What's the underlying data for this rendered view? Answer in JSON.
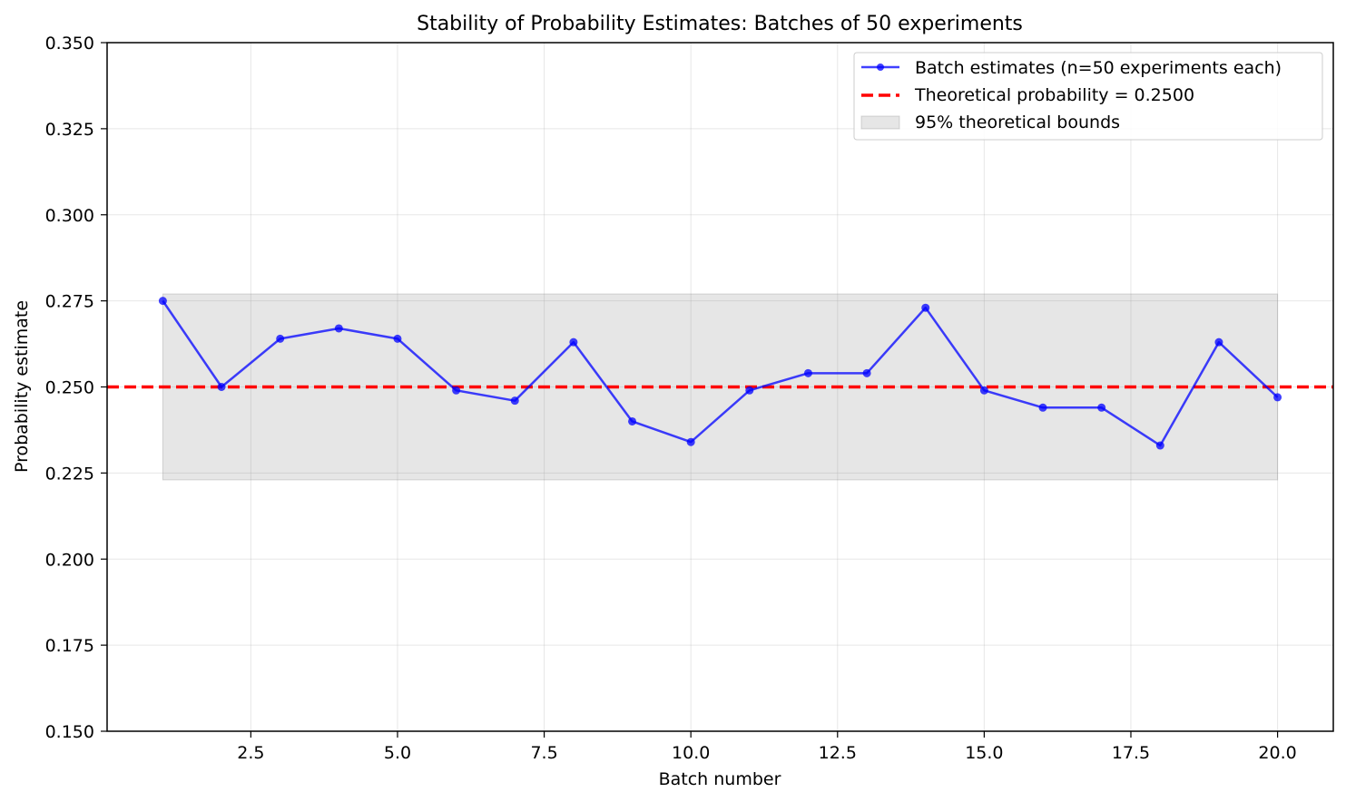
{
  "chart_data": {
    "type": "line",
    "title": "Stability of Probability Estimates: Batches of 50 experiments",
    "xlabel": "Batch number",
    "ylabel": "Probability estimate",
    "xlim": [
      0.05,
      20.95
    ],
    "ylim": [
      0.15,
      0.35
    ],
    "x_ticks": [
      2.5,
      5.0,
      7.5,
      10.0,
      12.5,
      15.0,
      17.5,
      20.0
    ],
    "x_tick_labels": [
      "2.5",
      "5.0",
      "7.5",
      "10.0",
      "12.5",
      "15.0",
      "17.5",
      "20.0"
    ],
    "y_ticks": [
      0.15,
      0.175,
      0.2,
      0.225,
      0.25,
      0.275,
      0.3,
      0.325,
      0.35
    ],
    "y_tick_labels": [
      "0.150",
      "0.175",
      "0.200",
      "0.225",
      "0.250",
      "0.275",
      "0.300",
      "0.325",
      "0.350"
    ],
    "grid": true,
    "legend_position": "top-right",
    "series": [
      {
        "name": "Batch estimates (n=50 experiments each)",
        "kind": "line-markers",
        "color": "#0000ff",
        "x": [
          1,
          2,
          3,
          4,
          5,
          6,
          7,
          8,
          9,
          10,
          11,
          12,
          13,
          14,
          15,
          16,
          17,
          18,
          19,
          20
        ],
        "values": [
          0.275,
          0.25,
          0.264,
          0.267,
          0.264,
          0.249,
          0.246,
          0.263,
          0.24,
          0.234,
          0.249,
          0.254,
          0.254,
          0.273,
          0.249,
          0.244,
          0.244,
          0.233,
          0.263,
          0.247
        ]
      },
      {
        "name": "Theoretical probability = 0.2500",
        "kind": "hline-dashed",
        "color": "#ff0000",
        "value": 0.25
      },
      {
        "name": "95% theoretical bounds",
        "kind": "band",
        "color": "#808080",
        "x_range": [
          1,
          20
        ],
        "lower": 0.223,
        "upper": 0.277
      }
    ]
  }
}
